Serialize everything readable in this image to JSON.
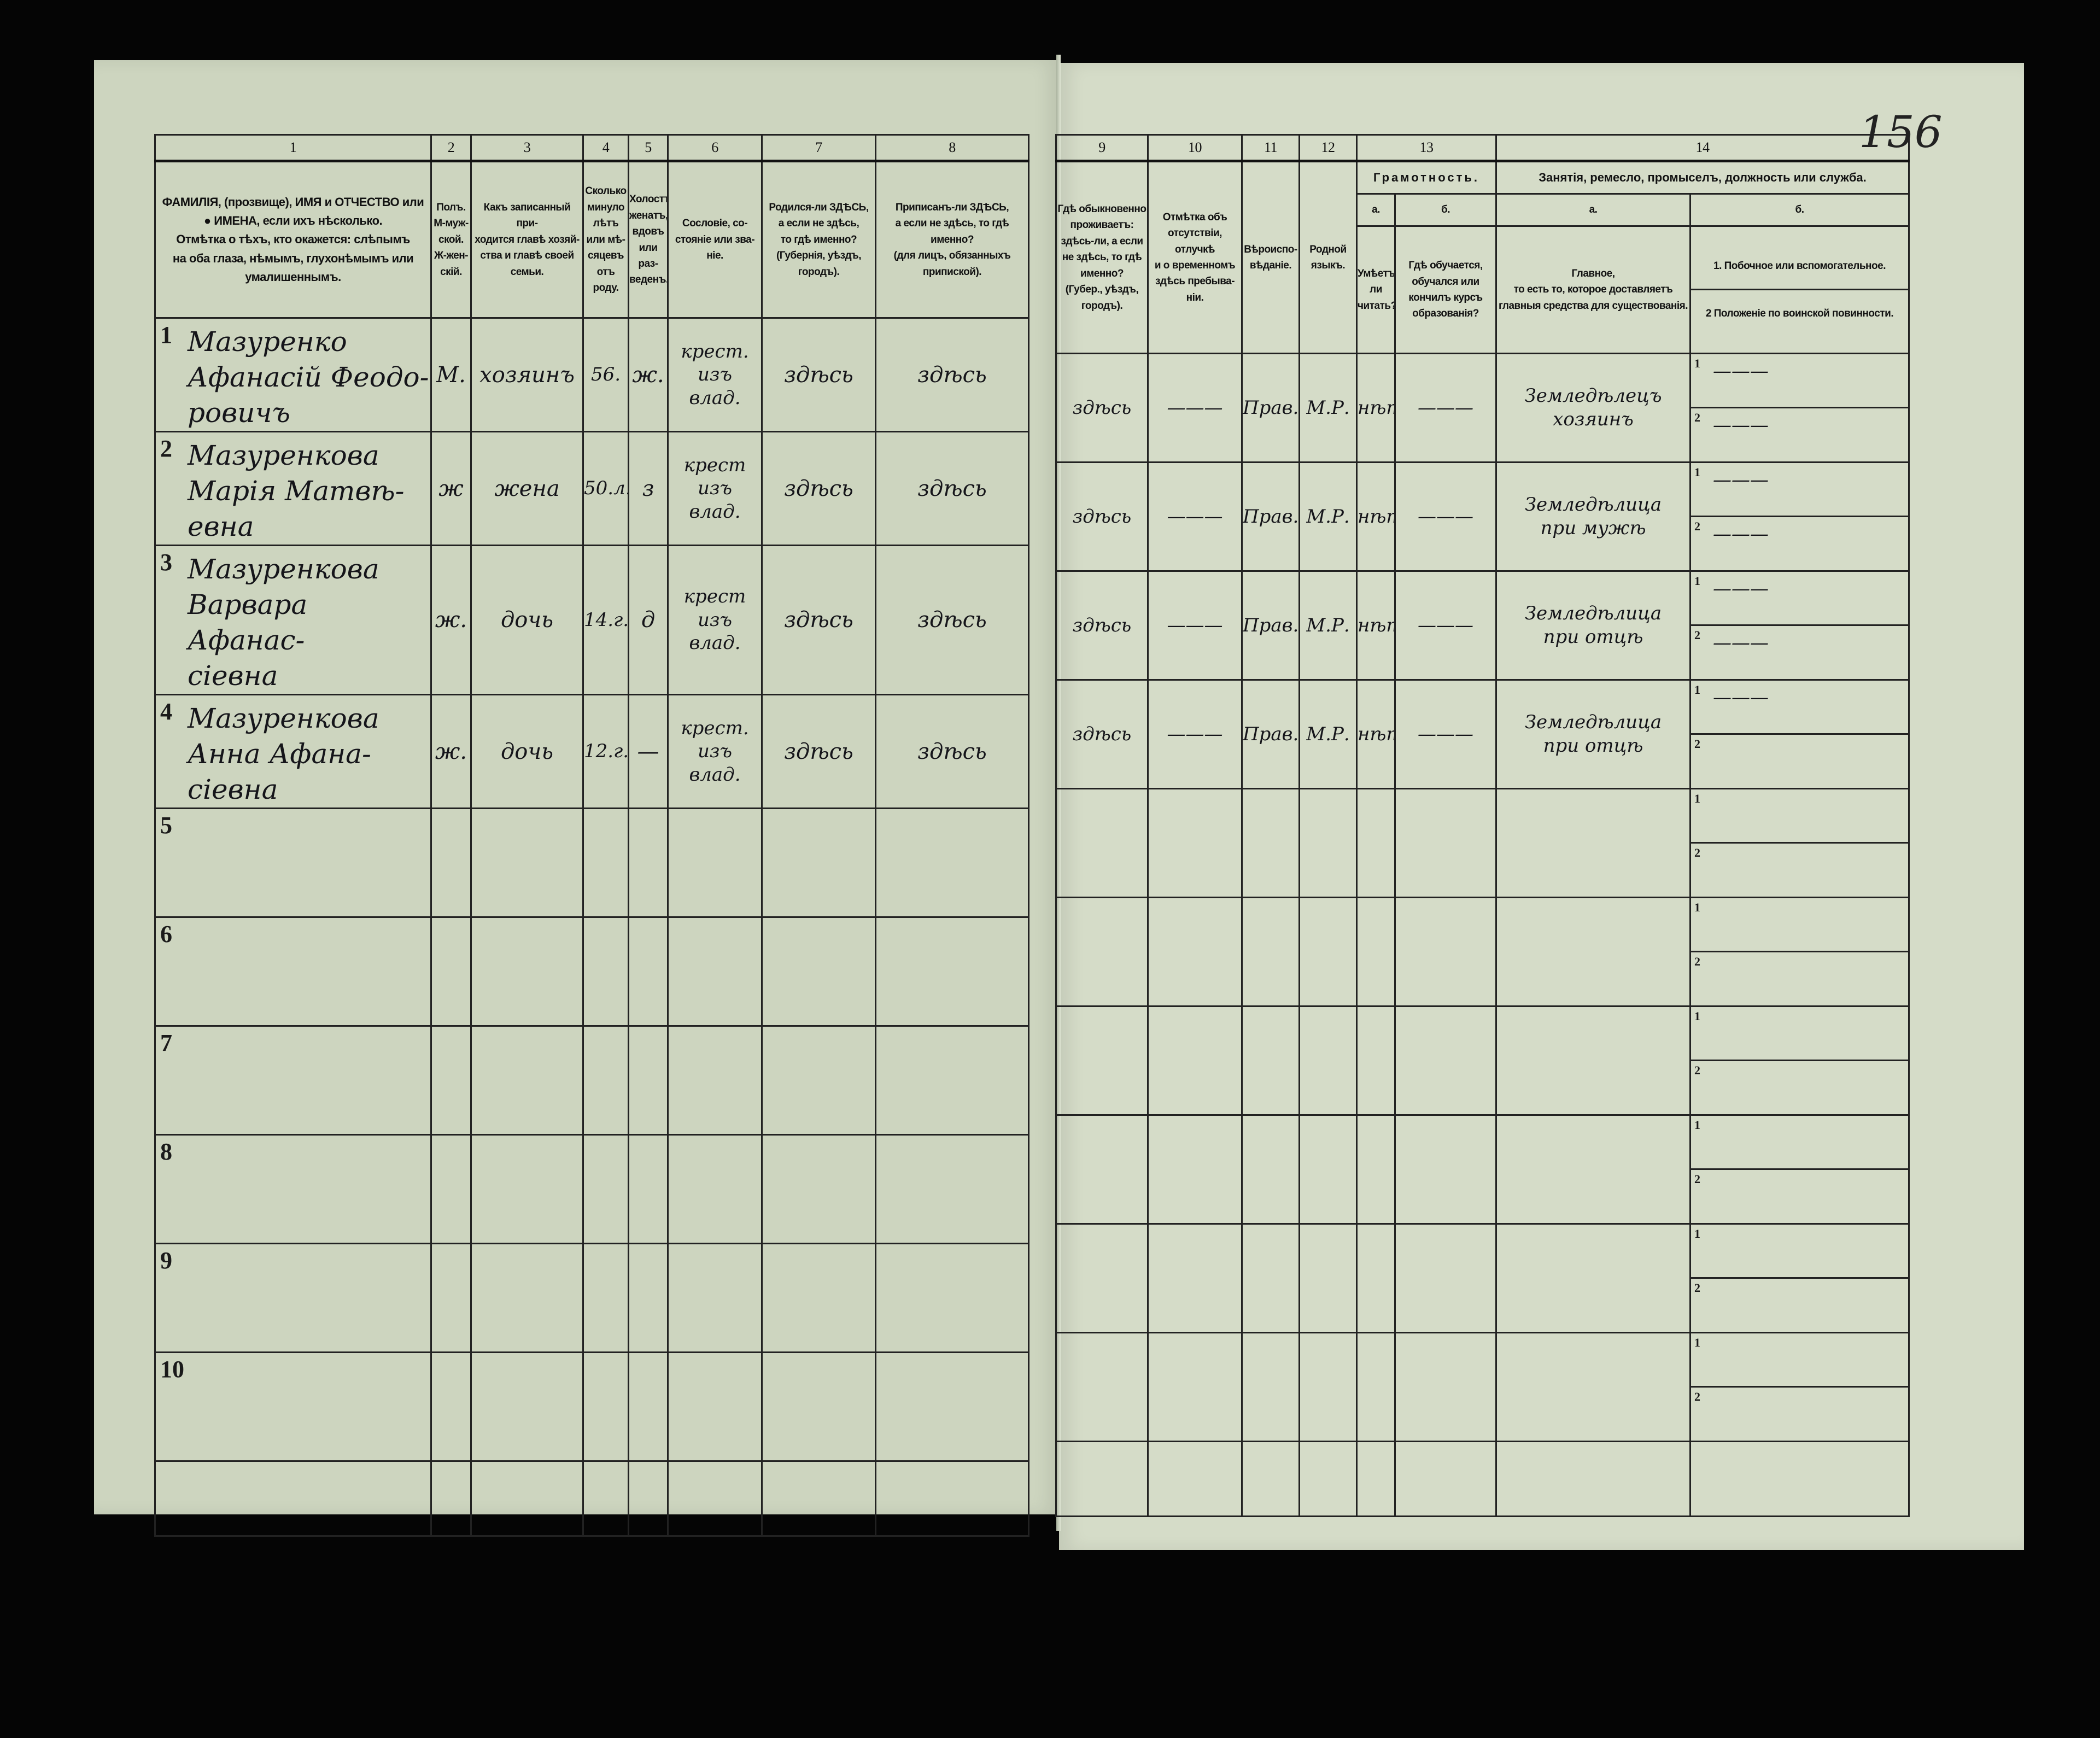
{
  "page_number": "156",
  "left_headers": [
    {
      "num": "1",
      "text": "ФАМИЛІЯ, (прозвище), ИМЯ и ОТЧЕСТВО или\n● ИМЕНА, если ихъ нѣсколько.\nОтмѣтка о тѣхъ, кто окажется: слѣпымъ\nна оба глаза, нѣмымъ, глухонѣмымъ или\nумалишеннымъ."
    },
    {
      "num": "2",
      "text": "Полъ.\nМ-муж-\nской.\nЖ-жен-\nскій."
    },
    {
      "num": "3",
      "text": "Какъ записанный при-\nходится главѣ хозяй-\nства и главѣ своей\nсемьи."
    },
    {
      "num": "4",
      "text": "Сколько\nминуло\nлѣтъ\nили мѣ-\nсяцевъ\nотъ роду."
    },
    {
      "num": "5",
      "text": "Холостъ,\nженатъ,\nвдовъ\nили раз-\nведенъ."
    },
    {
      "num": "6",
      "text": "Сословіе, со-\nстояніе или зва-\nніе."
    },
    {
      "num": "7",
      "text": "Родился-ли ЗДѢСЬ,\nа если не здѣсь,\nто гдѣ именно?\n(Губернія, уѣздъ, городъ)."
    },
    {
      "num": "8",
      "text": "Приписанъ-ли ЗДѢСЬ,\nа если не здѣсь, то гдѣ\nименно?\n(для лицъ, обязанныхъ\nприпиской)."
    }
  ],
  "right_headers": {
    "col9": {
      "num": "9",
      "text": "Гдѣ обыкновенно\nпроживаетъ:\nздѣсь-ли, а если\nне здѣсь, то гдѣ\nименно?\n(Губер., уѣздъ, городъ)."
    },
    "col10": {
      "num": "10",
      "text": "Отмѣтка объ\nотсутствіи, отлучкѣ\nи о временномъ\nздѣсь пребыва-\nніи."
    },
    "col11": {
      "num": "11",
      "text": "Вѣроиспо-\nвѣданіе."
    },
    "col12": {
      "num": "12",
      "text": "Родной\nязыкъ."
    },
    "col13": {
      "num": "13",
      "title": "Грамотность.",
      "a_label": "а.",
      "b_label": "б.",
      "a_text": "Умѣетъ-\nли\nчитать?",
      "b_text": "Гдѣ обучается,\nобучался или\nкончилъ курсъ\nобразованія?"
    },
    "col14": {
      "num": "14",
      "title": "Занятія, ремесло, промыселъ, должность или служба.",
      "a_label": "а.",
      "b_label": "б.",
      "a_text": "Главное,\nто есть то, которое доставляетъ\nглавныя средства для существованія.",
      "b_text_1": "1. Побочное или вспомогательное.",
      "b_text_2": "2 Положеніе по воинской повинности."
    }
  },
  "rows": [
    {
      "num": "1",
      "name": "Мазуренко\nАфанасій Феодо-\nровичъ",
      "sex": "М.",
      "relation": "хозяинъ",
      "age": "56.",
      "marital": "ж.",
      "estate": "крест.\nизъ\nвлад.",
      "born": "здѣсь",
      "registered": "здѣсь",
      "residence": "здѣсь",
      "absence": "———",
      "religion": "Прав.",
      "language": "М.Р.",
      "literate": "нѣтъ",
      "education": "———",
      "occupation": "Земледѣлецъ\nхозяинъ",
      "side_1": "———",
      "side_2": "———"
    },
    {
      "num": "2",
      "name": "Мазуренкова\nМарія Матвѣ-\nевна",
      "sex": "ж",
      "relation": "жена",
      "age": "50.л.",
      "marital": "з",
      "estate": "крест\nизъ\nвлад.",
      "born": "здѣсь",
      "registered": "здѣсь",
      "residence": "здѣсь",
      "absence": "———",
      "religion": "Прав.",
      "language": "М.Р.",
      "literate": "нѣтъ",
      "education": "———",
      "occupation": "Земледѣлица\nпри мужѣ",
      "side_1": "———",
      "side_2": "———"
    },
    {
      "num": "3",
      "name": "Мазуренкова\nВарвара Афанас-\nсіевна",
      "sex": "ж.",
      "relation": "дочь",
      "age": "14.г.",
      "marital": "д",
      "estate": "крест\nизъ\nвлад.",
      "born": "здѣсь",
      "registered": "здѣсь",
      "residence": "здѣсь",
      "absence": "———",
      "religion": "Прав.",
      "language": "М.Р.",
      "literate": "нѣтъ",
      "education": "———",
      "occupation": "Земледѣлица\nпри отцѣ",
      "side_1": "———",
      "side_2": "———"
    },
    {
      "num": "4",
      "name": "Мазуренкова\nАнна Афана-\nсіевна",
      "sex": "ж.",
      "relation": "дочь",
      "age": "12.г.",
      "marital": "—",
      "estate": "крест.\nизъ\nвлад.",
      "born": "здѣсь",
      "registered": "здѣсь",
      "residence": "здѣсь",
      "absence": "———",
      "religion": "Прав.",
      "language": "М.Р.",
      "literate": "нѣтъ",
      "education": "———",
      "occupation": "Земледѣлица\nпри отцѣ",
      "side_1": "———",
      "side_2": ""
    },
    {
      "num": "5"
    },
    {
      "num": "6"
    },
    {
      "num": "7"
    },
    {
      "num": "8"
    },
    {
      "num": "9"
    },
    {
      "num": "10"
    }
  ],
  "subrow_labels": {
    "first": "1",
    "second": "2"
  },
  "colors": {
    "paper": "#d3dac6",
    "background": "#050505",
    "ink": "#15151a",
    "rules": "#222222"
  }
}
